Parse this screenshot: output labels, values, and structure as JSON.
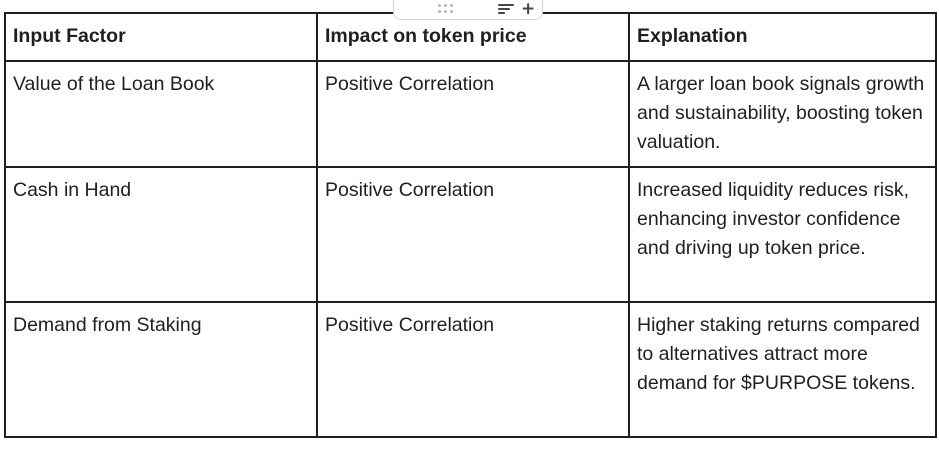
{
  "table": {
    "headers": [
      "Input Factor",
      "Impact on token price",
      "Explanation"
    ],
    "rows": [
      {
        "factor": "Value of the Loan Book",
        "impact": "Positive Correlation",
        "explanation": "A larger loan book signals growth and sustainability, boosting token valuation."
      },
      {
        "factor": "Cash in Hand",
        "impact": "Positive Correlation",
        "explanation": "Increased liquidity reduces risk, enhancing investor confidence and driving up token price."
      },
      {
        "factor": "Demand from Staking",
        "impact": "Positive Correlation",
        "explanation": "Higher staking returns compared to alternatives attract more demand for $PURPOSE tokens."
      }
    ]
  },
  "toolbar": {
    "icons": [
      "drag-handle-icon",
      "sort-icon",
      "plus-icon"
    ]
  }
}
